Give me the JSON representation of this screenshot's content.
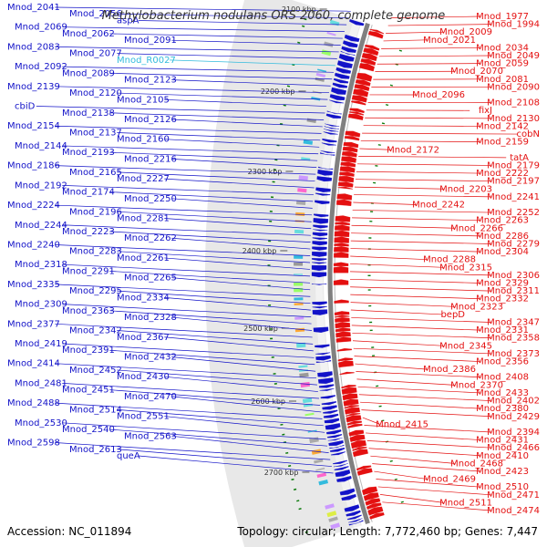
{
  "title": "Methylobacterium nodulans ORS 2060, complete genome",
  "accession": "Accession: NC_011894",
  "topology": "Topology: circular; Length: 7,772,460 bp; Genes: 7,447",
  "colors": {
    "forward": "#1212c8",
    "reverse": "#e41010",
    "rna": "#33bbdd",
    "backbone": "#808080",
    "ticks": "#0a7a0a"
  },
  "kbp_ticks": [
    "2100 kbp",
    "2200 kbp",
    "2300 kbp",
    "2400 kbp",
    "2500 kbp",
    "2600 kbp",
    "2700 kbp"
  ],
  "left_labels": [
    "Mnod_2041",
    "Mnod_2056",
    "aspA",
    "Mnod_2069",
    "Mnod_2062",
    "Mnod_2091",
    "Mnod_2083",
    "Mnod_2077",
    "Mnod_R0027",
    "Mnod_2092",
    "Mnod_2089",
    "Mnod_2123",
    "Mnod_2139",
    "Mnod_2120",
    "Mnod_2105",
    "cbiD",
    "Mnod_2138",
    "Mnod_2126",
    "Mnod_2154",
    "Mnod_2137",
    "Mnod_2160",
    "Mnod_2144",
    "Mnod_2193",
    "Mnod_2216",
    "Mnod_2186",
    "Mnod_2165",
    "Mnod_2227",
    "Mnod_2192",
    "Mnod_2174",
    "Mnod_2250",
    "Mnod_2224",
    "Mnod_2196",
    "Mnod_2281",
    "Mnod_2244",
    "Mnod_2223",
    "Mnod_2262",
    "Mnod_2240",
    "Mnod_2283",
    "Mnod_2261",
    "Mnod_2318",
    "Mnod_2291",
    "Mnod_2265",
    "Mnod_2335",
    "Mnod_2295",
    "Mnod_2334",
    "Mnod_2309",
    "Mnod_2363",
    "Mnod_2328",
    "Mnod_2377",
    "Mnod_2342",
    "Mnod_2367",
    "Mnod_2419",
    "Mnod_2391",
    "Mnod_2432",
    "Mnod_2414",
    "Mnod_2452",
    "Mnod_2430",
    "Mnod_2481",
    "Mnod_2451",
    "Mnod_2470",
    "Mnod_2488",
    "Mnod_2514",
    "Mnod_2551",
    "Mnod_2530",
    "Mnod_2540",
    "Mnod_2563",
    "Mnod_2598",
    "Mnod_2613",
    "queA"
  ],
  "right_labels": [
    "Mnod_1977",
    "Mnod_1994",
    "Mnod_2009",
    "Mnod_2021",
    "Mnod_2034",
    "Mnod_2049",
    "Mnod_2059",
    "Mnod_2070",
    "Mnod_2081",
    "Mnod_2090",
    "Mnod_2096",
    "Mnod_2108",
    "fixJ",
    "Mnod_2130",
    "Mnod_2142",
    "cobN",
    "Mnod_2159",
    "Mnod_2172",
    "tatA",
    "Mnod_2179",
    "Mnod_2222",
    "Mnod_2197",
    "Mnod_2203",
    "Mnod_2241",
    "Mnod_2242",
    "Mnod_2252",
    "Mnod_2263",
    "Mnod_2266",
    "Mnod_2286",
    "Mnod_2279",
    "Mnod_2304",
    "Mnod_2288",
    "Mnod_2315",
    "Mnod_2306",
    "Mnod_2329",
    "Mnod_2311",
    "Mnod_2332",
    "Mnod_2323",
    "bepD",
    "Mnod_2347",
    "Mnod_2331",
    "Mnod_2358",
    "Mnod_2345",
    "Mnod_2373",
    "Mnod_2356",
    "Mnod_2386",
    "Mnod_2408",
    "Mnod_2370",
    "Mnod_2433",
    "Mnod_2402",
    "Mnod_2380",
    "Mnod_2429",
    "Mnod_2415",
    "Mnod_2394",
    "Mnod_2431",
    "Mnod_2466",
    "Mnod_2410",
    "Mnod_2468",
    "Mnod_2423",
    "Mnod_2469",
    "Mnod_2510",
    "Mnod_2471",
    "Mnod_2511",
    "Mnod_2474"
  ]
}
